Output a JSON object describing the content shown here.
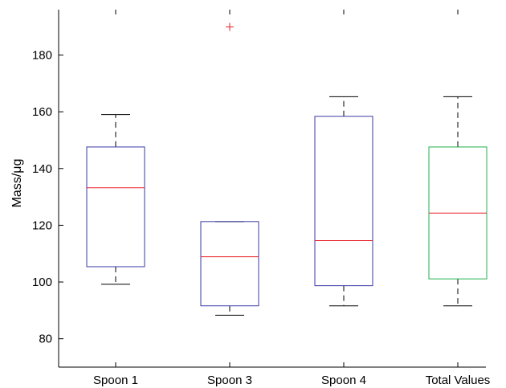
{
  "chart_data": {
    "type": "box",
    "ylabel": "Mass/μg",
    "ylim": [
      70,
      196
    ],
    "yticks": [
      80,
      100,
      120,
      140,
      160,
      180
    ],
    "grid": false,
    "categories": [
      "Spoon 1",
      "Spoon 3",
      "Spoon 4",
      "Total Values"
    ],
    "boxes": [
      {
        "category": "Spoon 1",
        "whisker_low": 99.2,
        "q1": 105.4,
        "median": 133.2,
        "q3": 147.6,
        "whisker_high": 159.0,
        "outliers": [],
        "color": "#3a3aa8"
      },
      {
        "category": "Spoon 3",
        "whisker_low": 88.3,
        "q1": 91.6,
        "median": 108.9,
        "q3": 121.3,
        "whisker_high": 121.3,
        "outliers": [
          189.9
        ],
        "color": "#3a3aa8"
      },
      {
        "category": "Spoon 4",
        "whisker_low": 91.6,
        "q1": 98.7,
        "median": 114.6,
        "q3": 158.4,
        "whisker_high": 165.3,
        "outliers": [],
        "color": "#3a3aa8"
      },
      {
        "category": "Total Values",
        "whisker_low": 91.6,
        "q1": 101.1,
        "median": 124.3,
        "q3": 147.6,
        "whisker_high": 165.3,
        "outliers": [],
        "color": "#22b14c"
      }
    ],
    "median_color": "#e8202a",
    "outlier_color": "#e8202a",
    "whisker_color": "#000000"
  }
}
